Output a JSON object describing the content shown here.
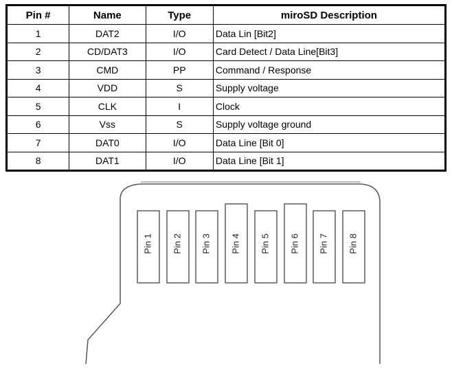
{
  "table": {
    "headers": [
      "Pin #",
      "Name",
      "Type",
      "miroSD Description"
    ],
    "rows": [
      [
        "1",
        "DAT2",
        "I/O",
        "Data Lin [Bit2]"
      ],
      [
        "2",
        "CD/DAT3",
        "I/O",
        "Card Detect / Data Line[Bit3]"
      ],
      [
        "3",
        "CMD",
        "PP",
        "Command / Response"
      ],
      [
        "4",
        "VDD",
        "S",
        "Supply voltage"
      ],
      [
        "5",
        "CLK",
        "I",
        "Clock"
      ],
      [
        "6",
        "Vss",
        "S",
        "Supply voltage ground"
      ],
      [
        "7",
        "DAT0",
        "I/O",
        "Data Line [Bit 0]"
      ],
      [
        "8",
        "DAT1",
        "I/O",
        "Data Line [Bit 1]"
      ]
    ]
  },
  "diagram": {
    "pins": [
      "Pin 1",
      "Pin 2",
      "Pin 3",
      "Pin 4",
      "Pin 5",
      "Pin 6",
      "Pin 7",
      "Pin 8"
    ]
  }
}
